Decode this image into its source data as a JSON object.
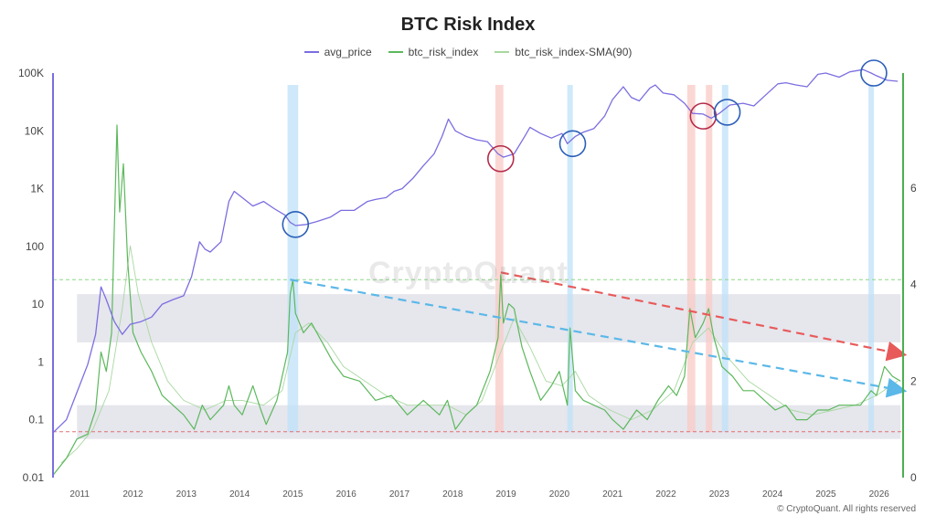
{
  "chart_data": {
    "type": "line",
    "title": "BTC Risk Index",
    "x_ticks": [
      "2011",
      "2012",
      "2013",
      "2014",
      "2015",
      "2016",
      "2017",
      "2018",
      "2019",
      "2020",
      "2021",
      "2022",
      "2023",
      "2024",
      "2025",
      "2026"
    ],
    "x_range": [
      2010.55,
      2026.5
    ],
    "y_left": {
      "scale": "log",
      "range": [
        0.01,
        100000
      ],
      "tick_labels": [
        "0.01",
        "0.1",
        "1",
        "10",
        "100",
        "1K",
        "10K",
        "100K"
      ],
      "tick_values": [
        0.01,
        0.1,
        1,
        10,
        100,
        1000,
        10000,
        100000
      ],
      "color": "#7b6ee0"
    },
    "y_right": {
      "scale": "linear",
      "range": [
        0,
        8
      ],
      "tick_labels": [
        "0",
        "2",
        "4",
        "6"
      ],
      "tick_values": [
        0,
        2,
        4,
        6
      ],
      "color": "#4caf50"
    },
    "legend_position": "top-center",
    "series": [
      {
        "name": "avg_price",
        "axis": "left",
        "color": "#7b6ee0",
        "points": [
          [
            2010.55,
            0.06
          ],
          [
            2010.8,
            0.1
          ],
          [
            2011.0,
            0.3
          ],
          [
            2011.2,
            0.9
          ],
          [
            2011.35,
            3
          ],
          [
            2011.45,
            20
          ],
          [
            2011.55,
            12
          ],
          [
            2011.7,
            5
          ],
          [
            2011.85,
            3
          ],
          [
            2012.0,
            4.5
          ],
          [
            2012.2,
            5
          ],
          [
            2012.4,
            6
          ],
          [
            2012.6,
            10
          ],
          [
            2012.8,
            12
          ],
          [
            2013.0,
            14
          ],
          [
            2013.15,
            30
          ],
          [
            2013.3,
            120
          ],
          [
            2013.4,
            90
          ],
          [
            2013.5,
            80
          ],
          [
            2013.7,
            120
          ],
          [
            2013.85,
            600
          ],
          [
            2013.95,
            900
          ],
          [
            2014.1,
            700
          ],
          [
            2014.3,
            500
          ],
          [
            2014.5,
            600
          ],
          [
            2014.7,
            450
          ],
          [
            2014.9,
            350
          ],
          [
            2015.0,
            260
          ],
          [
            2015.1,
            230
          ],
          [
            2015.3,
            240
          ],
          [
            2015.5,
            270
          ],
          [
            2015.75,
            320
          ],
          [
            2015.95,
            420
          ],
          [
            2016.2,
            420
          ],
          [
            2016.45,
            600
          ],
          [
            2016.6,
            650
          ],
          [
            2016.8,
            700
          ],
          [
            2016.95,
            900
          ],
          [
            2017.1,
            1000
          ],
          [
            2017.3,
            1500
          ],
          [
            2017.5,
            2500
          ],
          [
            2017.7,
            4000
          ],
          [
            2017.85,
            8000
          ],
          [
            2017.97,
            16000
          ],
          [
            2018.1,
            10000
          ],
          [
            2018.3,
            8000
          ],
          [
            2018.5,
            7000
          ],
          [
            2018.7,
            6500
          ],
          [
            2018.9,
            4000
          ],
          [
            2019.0,
            3500
          ],
          [
            2019.2,
            4000
          ],
          [
            2019.4,
            8000
          ],
          [
            2019.5,
            11500
          ],
          [
            2019.7,
            9000
          ],
          [
            2019.9,
            7500
          ],
          [
            2020.1,
            9000
          ],
          [
            2020.2,
            6000
          ],
          [
            2020.35,
            8000
          ],
          [
            2020.5,
            9500
          ],
          [
            2020.7,
            11000
          ],
          [
            2020.9,
            18000
          ],
          [
            2021.05,
            35000
          ],
          [
            2021.25,
            58000
          ],
          [
            2021.4,
            38000
          ],
          [
            2021.55,
            33000
          ],
          [
            2021.75,
            55000
          ],
          [
            2021.85,
            62000
          ],
          [
            2022.0,
            45000
          ],
          [
            2022.2,
            42000
          ],
          [
            2022.4,
            30000
          ],
          [
            2022.55,
            20000
          ],
          [
            2022.75,
            19500
          ],
          [
            2022.9,
            16500
          ],
          [
            2023.05,
            20000
          ],
          [
            2023.25,
            28000
          ],
          [
            2023.5,
            30000
          ],
          [
            2023.7,
            27000
          ],
          [
            2023.9,
            40000
          ],
          [
            2024.15,
            65000
          ],
          [
            2024.3,
            68000
          ],
          [
            2024.5,
            62000
          ],
          [
            2024.7,
            58000
          ],
          [
            2024.9,
            95000
          ],
          [
            2025.05,
            100000
          ],
          [
            2025.3,
            85000
          ],
          [
            2025.5,
            105000
          ],
          [
            2025.75,
            115000
          ],
          [
            2025.9,
            100000
          ],
          [
            2026.0,
            90000
          ],
          [
            2026.2,
            75000
          ],
          [
            2026.4,
            72000
          ]
        ]
      },
      {
        "name": "btc_risk_index",
        "axis": "right",
        "color": "#5cb85c",
        "points": [
          [
            2010.55,
            0.05
          ],
          [
            2010.8,
            0.4
          ],
          [
            2011.0,
            0.8
          ],
          [
            2011.2,
            0.9
          ],
          [
            2011.35,
            1.4
          ],
          [
            2011.45,
            2.6
          ],
          [
            2011.55,
            2.2
          ],
          [
            2011.65,
            3.0
          ],
          [
            2011.75,
            7.3
          ],
          [
            2011.8,
            5.5
          ],
          [
            2011.87,
            6.5
          ],
          [
            2011.95,
            4.5
          ],
          [
            2012.05,
            3.0
          ],
          [
            2012.2,
            2.6
          ],
          [
            2012.4,
            2.2
          ],
          [
            2012.6,
            1.7
          ],
          [
            2012.8,
            1.5
          ],
          [
            2013.0,
            1.3
          ],
          [
            2013.2,
            1.0
          ],
          [
            2013.35,
            1.5
          ],
          [
            2013.5,
            1.2
          ],
          [
            2013.75,
            1.5
          ],
          [
            2013.85,
            1.9
          ],
          [
            2013.95,
            1.5
          ],
          [
            2014.1,
            1.3
          ],
          [
            2014.3,
            1.9
          ],
          [
            2014.45,
            1.4
          ],
          [
            2014.55,
            1.1
          ],
          [
            2014.75,
            1.6
          ],
          [
            2014.95,
            2.6
          ],
          [
            2015.0,
            3.8
          ],
          [
            2015.05,
            4.1
          ],
          [
            2015.1,
            3.4
          ],
          [
            2015.25,
            3.0
          ],
          [
            2015.4,
            3.2
          ],
          [
            2015.6,
            2.8
          ],
          [
            2015.8,
            2.4
          ],
          [
            2016.0,
            2.1
          ],
          [
            2016.3,
            2.0
          ],
          [
            2016.6,
            1.6
          ],
          [
            2016.9,
            1.7
          ],
          [
            2017.2,
            1.3
          ],
          [
            2017.5,
            1.6
          ],
          [
            2017.8,
            1.3
          ],
          [
            2017.95,
            1.6
          ],
          [
            2018.1,
            1.0
          ],
          [
            2018.3,
            1.3
          ],
          [
            2018.5,
            1.5
          ],
          [
            2018.75,
            2.2
          ],
          [
            2018.9,
            2.9
          ],
          [
            2018.95,
            4.2
          ],
          [
            2019.0,
            3.2
          ],
          [
            2019.1,
            3.6
          ],
          [
            2019.2,
            3.5
          ],
          [
            2019.35,
            2.7
          ],
          [
            2019.5,
            2.2
          ],
          [
            2019.7,
            1.6
          ],
          [
            2019.9,
            1.9
          ],
          [
            2020.05,
            2.2
          ],
          [
            2020.2,
            1.5
          ],
          [
            2020.25,
            3.1
          ],
          [
            2020.35,
            1.8
          ],
          [
            2020.5,
            1.6
          ],
          [
            2020.7,
            1.5
          ],
          [
            2020.9,
            1.4
          ],
          [
            2021.05,
            1.2
          ],
          [
            2021.25,
            1.0
          ],
          [
            2021.5,
            1.4
          ],
          [
            2021.7,
            1.2
          ],
          [
            2021.9,
            1.6
          ],
          [
            2022.1,
            1.9
          ],
          [
            2022.25,
            1.7
          ],
          [
            2022.4,
            2.1
          ],
          [
            2022.5,
            3.5
          ],
          [
            2022.6,
            2.9
          ],
          [
            2022.75,
            3.2
          ],
          [
            2022.85,
            3.5
          ],
          [
            2022.95,
            2.9
          ],
          [
            2023.1,
            2.3
          ],
          [
            2023.3,
            2.1
          ],
          [
            2023.5,
            1.8
          ],
          [
            2023.7,
            1.8
          ],
          [
            2023.9,
            1.6
          ],
          [
            2024.1,
            1.4
          ],
          [
            2024.3,
            1.5
          ],
          [
            2024.5,
            1.2
          ],
          [
            2024.7,
            1.2
          ],
          [
            2024.9,
            1.4
          ],
          [
            2025.1,
            1.4
          ],
          [
            2025.3,
            1.5
          ],
          [
            2025.5,
            1.5
          ],
          [
            2025.7,
            1.5
          ],
          [
            2025.9,
            1.8
          ],
          [
            2026.0,
            1.7
          ],
          [
            2026.15,
            2.3
          ],
          [
            2026.3,
            2.1
          ],
          [
            2026.45,
            2.0
          ]
        ]
      },
      {
        "name": "btc_risk_index-SMA(90)",
        "axis": "right",
        "color": "#a8d8a0",
        "points": [
          [
            2010.7,
            0.3
          ],
          [
            2011.0,
            0.6
          ],
          [
            2011.3,
            1.0
          ],
          [
            2011.6,
            1.8
          ],
          [
            2011.85,
            3.5
          ],
          [
            2012.0,
            4.8
          ],
          [
            2012.15,
            3.8
          ],
          [
            2012.4,
            2.8
          ],
          [
            2012.7,
            2.0
          ],
          [
            2013.0,
            1.6
          ],
          [
            2013.4,
            1.4
          ],
          [
            2013.8,
            1.6
          ],
          [
            2014.1,
            1.6
          ],
          [
            2014.5,
            1.5
          ],
          [
            2014.85,
            1.8
          ],
          [
            2015.1,
            3.0
          ],
          [
            2015.35,
            3.2
          ],
          [
            2015.7,
            2.8
          ],
          [
            2016.0,
            2.3
          ],
          [
            2016.4,
            2.0
          ],
          [
            2016.8,
            1.7
          ],
          [
            2017.2,
            1.5
          ],
          [
            2017.6,
            1.5
          ],
          [
            2017.95,
            1.5
          ],
          [
            2018.3,
            1.3
          ],
          [
            2018.6,
            1.6
          ],
          [
            2018.95,
            2.6
          ],
          [
            2019.2,
            3.3
          ],
          [
            2019.5,
            2.7
          ],
          [
            2019.8,
            2.0
          ],
          [
            2020.1,
            1.9
          ],
          [
            2020.35,
            2.2
          ],
          [
            2020.6,
            1.7
          ],
          [
            2021.0,
            1.4
          ],
          [
            2021.4,
            1.2
          ],
          [
            2021.8,
            1.4
          ],
          [
            2022.2,
            1.8
          ],
          [
            2022.55,
            2.8
          ],
          [
            2022.85,
            3.1
          ],
          [
            2023.2,
            2.5
          ],
          [
            2023.6,
            2.0
          ],
          [
            2024.0,
            1.7
          ],
          [
            2024.4,
            1.4
          ],
          [
            2024.8,
            1.3
          ],
          [
            2025.2,
            1.4
          ],
          [
            2025.6,
            1.5
          ],
          [
            2026.0,
            1.7
          ],
          [
            2026.4,
            2.0
          ]
        ]
      }
    ],
    "highlight_bands": [
      {
        "x": [
          2011.0,
          2026.45
        ],
        "axis": "right",
        "y": [
          0.8,
          1.5
        ],
        "color": "#dcdce6"
      },
      {
        "x": [
          2011.0,
          2026.45
        ],
        "axis": "right",
        "y": [
          2.8,
          3.8
        ],
        "color": "#dcdce6"
      },
      {
        "x": [
          2014.95,
          2015.15
        ],
        "color": "#bfe2f8"
      },
      {
        "x": [
          2018.85,
          2019.0
        ],
        "color": "#f9c9c6"
      },
      {
        "x": [
          2020.2,
          2020.3
        ],
        "color": "#bfe2f8"
      },
      {
        "x": [
          2022.45,
          2022.6
        ],
        "color": "#f9c9c6"
      },
      {
        "x": [
          2022.8,
          2022.92
        ],
        "color": "#f9c9c6"
      },
      {
        "x": [
          2023.1,
          2023.22
        ],
        "color": "#bfe2f8"
      },
      {
        "x": [
          2025.85,
          2025.95
        ],
        "color": "#bfe2f8"
      }
    ],
    "reference_lines": [
      {
        "axis": "right",
        "y": 4.1,
        "color": "#8fd68a",
        "style": "dashed"
      },
      {
        "axis": "right",
        "y": 0.95,
        "color": "#e07070",
        "style": "dashed"
      }
    ],
    "trend_arrows": [
      {
        "from": [
          2015.0,
          4.1
        ],
        "to": [
          2026.5,
          1.8
        ],
        "axis": "right",
        "color": "#5bb8e8"
      },
      {
        "from": [
          2018.95,
          4.25
        ],
        "to": [
          2026.5,
          2.55
        ],
        "axis": "right",
        "color": "#e85a5a"
      }
    ],
    "annotation_circles": [
      {
        "x": 2015.1,
        "y": 240,
        "axis": "left",
        "color": "#2c5fb8"
      },
      {
        "x": 2018.95,
        "y": 3300,
        "axis": "left",
        "color": "#b52b4a"
      },
      {
        "x": 2020.3,
        "y": 6000,
        "axis": "left",
        "color": "#2c5fb8"
      },
      {
        "x": 2022.75,
        "y": 18000,
        "axis": "left",
        "color": "#b52b4a"
      },
      {
        "x": 2023.2,
        "y": 21000,
        "axis": "left",
        "color": "#2c5fb8"
      },
      {
        "x": 2025.95,
        "y": 100000,
        "axis": "left",
        "color": "#2c5fb8"
      }
    ],
    "watermark": "CryptoQuant",
    "copyright": "© CryptoQuant. All rights reserved"
  }
}
